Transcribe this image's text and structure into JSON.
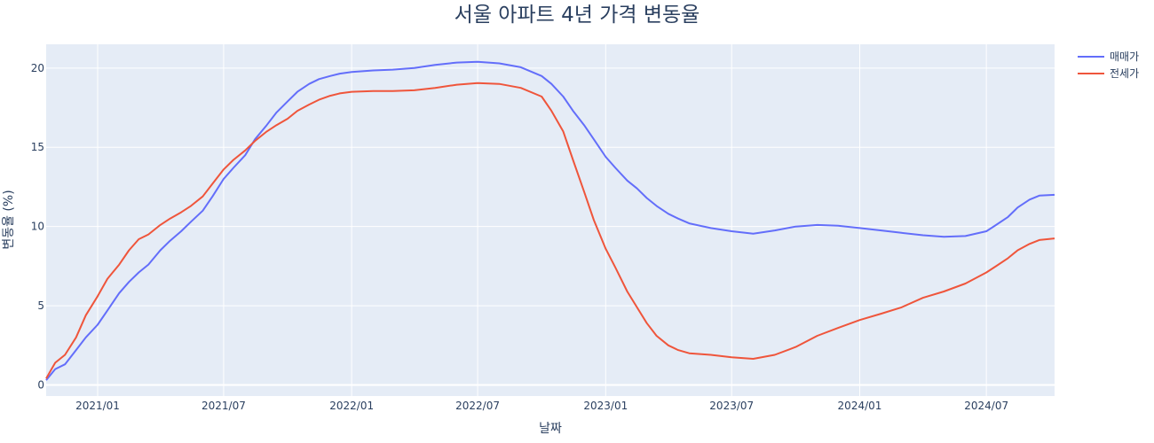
{
  "chart_data": {
    "type": "line",
    "title": "서울 아파트 4년 가격 변동율",
    "xlabel": "날짜",
    "ylabel": "변동율 (%)",
    "x_ticks": [
      "2021/01",
      "2021/07",
      "2022/01",
      "2022/07",
      "2023/01",
      "2023/07",
      "2024/01",
      "2024/07"
    ],
    "y_ticks": [
      0,
      5,
      10,
      15,
      20
    ],
    "xlim": [
      "2020-10-19",
      "2024-10-07"
    ],
    "ylim": [
      -0.7,
      21.5
    ],
    "grid": true,
    "legend_position": "top-right",
    "colors": {
      "plot_bg": "#e5ecf6",
      "series_1": "#636efa",
      "series_2": "#ef553b"
    },
    "series": [
      {
        "name": "매매가",
        "color": "#636efa",
        "points": [
          [
            "2020-10-19",
            0.3
          ],
          [
            "2020-11-01",
            1.0
          ],
          [
            "2020-11-15",
            1.3
          ],
          [
            "2020-12-01",
            2.2
          ],
          [
            "2020-12-15",
            3.0
          ],
          [
            "2021-01-01",
            3.8
          ],
          [
            "2021-01-15",
            4.7
          ],
          [
            "2021-02-01",
            5.8
          ],
          [
            "2021-02-15",
            6.5
          ],
          [
            "2021-03-01",
            7.1
          ],
          [
            "2021-03-15",
            7.6
          ],
          [
            "2021-04-01",
            8.5
          ],
          [
            "2021-04-15",
            9.1
          ],
          [
            "2021-05-01",
            9.7
          ],
          [
            "2021-05-15",
            10.3
          ],
          [
            "2021-06-01",
            11.0
          ],
          [
            "2021-06-15",
            11.9
          ],
          [
            "2021-07-01",
            13.0
          ],
          [
            "2021-07-15",
            13.7
          ],
          [
            "2021-08-01",
            14.5
          ],
          [
            "2021-08-15",
            15.5
          ],
          [
            "2021-09-01",
            16.4
          ],
          [
            "2021-09-15",
            17.2
          ],
          [
            "2021-10-01",
            17.9
          ],
          [
            "2021-10-15",
            18.5
          ],
          [
            "2021-11-01",
            19.0
          ],
          [
            "2021-11-15",
            19.3
          ],
          [
            "2021-12-01",
            19.5
          ],
          [
            "2021-12-15",
            19.65
          ],
          [
            "2022-01-01",
            19.75
          ],
          [
            "2022-02-01",
            19.85
          ],
          [
            "2022-03-01",
            19.9
          ],
          [
            "2022-04-01",
            20.0
          ],
          [
            "2022-05-01",
            20.2
          ],
          [
            "2022-06-01",
            20.35
          ],
          [
            "2022-07-01",
            20.4
          ],
          [
            "2022-08-01",
            20.3
          ],
          [
            "2022-09-01",
            20.05
          ],
          [
            "2022-10-01",
            19.5
          ],
          [
            "2022-10-15",
            19.0
          ],
          [
            "2022-11-01",
            18.2
          ],
          [
            "2022-11-15",
            17.3
          ],
          [
            "2022-12-01",
            16.4
          ],
          [
            "2022-12-15",
            15.5
          ],
          [
            "2023-01-01",
            14.4
          ],
          [
            "2023-01-15",
            13.7
          ],
          [
            "2023-02-01",
            12.9
          ],
          [
            "2023-02-15",
            12.4
          ],
          [
            "2023-03-01",
            11.8
          ],
          [
            "2023-03-15",
            11.3
          ],
          [
            "2023-04-01",
            10.8
          ],
          [
            "2023-04-15",
            10.5
          ],
          [
            "2023-05-01",
            10.2
          ],
          [
            "2023-06-01",
            9.9
          ],
          [
            "2023-07-01",
            9.7
          ],
          [
            "2023-08-01",
            9.55
          ],
          [
            "2023-09-01",
            9.75
          ],
          [
            "2023-10-01",
            10.0
          ],
          [
            "2023-11-01",
            10.1
          ],
          [
            "2023-12-01",
            10.05
          ],
          [
            "2024-01-01",
            9.9
          ],
          [
            "2024-02-01",
            9.75
          ],
          [
            "2024-03-01",
            9.6
          ],
          [
            "2024-04-01",
            9.45
          ],
          [
            "2024-05-01",
            9.35
          ],
          [
            "2024-06-01",
            9.4
          ],
          [
            "2024-07-01",
            9.7
          ],
          [
            "2024-07-15",
            10.1
          ],
          [
            "2024-08-01",
            10.6
          ],
          [
            "2024-08-15",
            11.2
          ],
          [
            "2024-09-01",
            11.7
          ],
          [
            "2024-09-15",
            11.95
          ],
          [
            "2024-10-07",
            12.0
          ]
        ]
      },
      {
        "name": "전세가",
        "color": "#ef553b",
        "points": [
          [
            "2020-10-19",
            0.4
          ],
          [
            "2020-11-01",
            1.4
          ],
          [
            "2020-11-15",
            1.9
          ],
          [
            "2020-12-01",
            3.0
          ],
          [
            "2020-12-15",
            4.4
          ],
          [
            "2021-01-01",
            5.6
          ],
          [
            "2021-01-15",
            6.7
          ],
          [
            "2021-02-01",
            7.6
          ],
          [
            "2021-02-15",
            8.5
          ],
          [
            "2021-03-01",
            9.2
          ],
          [
            "2021-03-15",
            9.5
          ],
          [
            "2021-04-01",
            10.1
          ],
          [
            "2021-04-15",
            10.5
          ],
          [
            "2021-05-01",
            10.9
          ],
          [
            "2021-05-15",
            11.3
          ],
          [
            "2021-06-01",
            11.9
          ],
          [
            "2021-06-15",
            12.7
          ],
          [
            "2021-07-01",
            13.6
          ],
          [
            "2021-07-15",
            14.2
          ],
          [
            "2021-08-01",
            14.8
          ],
          [
            "2021-08-15",
            15.4
          ],
          [
            "2021-09-01",
            16.0
          ],
          [
            "2021-09-15",
            16.4
          ],
          [
            "2021-10-01",
            16.8
          ],
          [
            "2021-10-15",
            17.3
          ],
          [
            "2021-11-01",
            17.7
          ],
          [
            "2021-11-15",
            18.0
          ],
          [
            "2021-12-01",
            18.25
          ],
          [
            "2021-12-15",
            18.4
          ],
          [
            "2022-01-01",
            18.5
          ],
          [
            "2022-02-01",
            18.55
          ],
          [
            "2022-03-01",
            18.55
          ],
          [
            "2022-04-01",
            18.6
          ],
          [
            "2022-05-01",
            18.75
          ],
          [
            "2022-06-01",
            18.95
          ],
          [
            "2022-07-01",
            19.05
          ],
          [
            "2022-08-01",
            19.0
          ],
          [
            "2022-09-01",
            18.75
          ],
          [
            "2022-10-01",
            18.2
          ],
          [
            "2022-10-15",
            17.3
          ],
          [
            "2022-11-01",
            16.0
          ],
          [
            "2022-11-15",
            14.2
          ],
          [
            "2022-12-01",
            12.2
          ],
          [
            "2022-12-15",
            10.4
          ],
          [
            "2023-01-01",
            8.6
          ],
          [
            "2023-01-15",
            7.4
          ],
          [
            "2023-02-01",
            5.9
          ],
          [
            "2023-02-15",
            4.9
          ],
          [
            "2023-03-01",
            3.9
          ],
          [
            "2023-03-15",
            3.1
          ],
          [
            "2023-04-01",
            2.5
          ],
          [
            "2023-04-15",
            2.2
          ],
          [
            "2023-05-01",
            2.0
          ],
          [
            "2023-06-01",
            1.9
          ],
          [
            "2023-07-01",
            1.75
          ],
          [
            "2023-08-01",
            1.65
          ],
          [
            "2023-09-01",
            1.9
          ],
          [
            "2023-10-01",
            2.4
          ],
          [
            "2023-11-01",
            3.1
          ],
          [
            "2023-12-01",
            3.6
          ],
          [
            "2024-01-01",
            4.1
          ],
          [
            "2024-02-01",
            4.5
          ],
          [
            "2024-03-01",
            4.9
          ],
          [
            "2024-04-01",
            5.5
          ],
          [
            "2024-05-01",
            5.9
          ],
          [
            "2024-06-01",
            6.4
          ],
          [
            "2024-07-01",
            7.1
          ],
          [
            "2024-07-15",
            7.5
          ],
          [
            "2024-08-01",
            8.0
          ],
          [
            "2024-08-15",
            8.5
          ],
          [
            "2024-09-01",
            8.9
          ],
          [
            "2024-09-15",
            9.15
          ],
          [
            "2024-10-07",
            9.25
          ]
        ]
      }
    ]
  }
}
